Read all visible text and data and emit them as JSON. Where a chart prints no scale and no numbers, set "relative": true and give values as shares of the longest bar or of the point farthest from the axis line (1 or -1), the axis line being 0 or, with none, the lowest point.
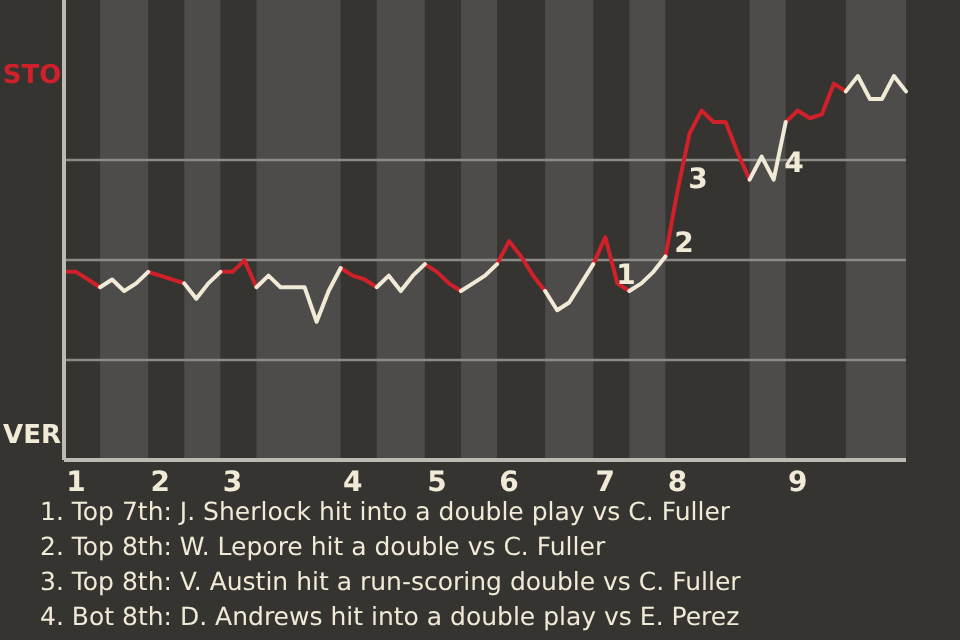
{
  "chart_data": {
    "type": "line",
    "relative": true,
    "categories": [
      null,
      "1",
      null,
      null,
      null,
      null,
      null,
      null,
      "2",
      null,
      null,
      null,
      null,
      null,
      "3",
      null,
      null,
      null,
      null,
      null,
      null,
      null,
      null,
      null,
      "4",
      null,
      null,
      null,
      null,
      null,
      null,
      "5",
      null,
      null,
      null,
      null,
      null,
      "6",
      null,
      null,
      null,
      null,
      null,
      null,
      null,
      "7",
      null,
      null,
      null,
      null,
      null,
      "8",
      null,
      null,
      null,
      null,
      null,
      null,
      null,
      null,
      null,
      "9",
      null,
      null,
      null,
      null,
      null,
      null,
      null,
      null,
      null
    ],
    "series": [
      {
        "color": "#d0202a",
        "values": [
          0.49,
          0.49,
          0.47,
          0.45,
          null,
          null,
          null,
          0.49,
          0.48,
          0.47,
          0.46,
          null,
          null,
          0.49,
          0.49,
          0.52,
          0.45,
          null,
          null,
          null,
          null,
          null,
          null,
          0.5,
          0.48,
          0.47,
          0.45,
          null,
          null,
          null,
          0.51,
          0.49,
          0.46,
          0.44,
          null,
          null,
          0.51,
          0.57,
          0.53,
          0.48,
          0.44,
          null,
          null,
          null,
          0.51,
          0.58,
          0.46,
          0.44,
          null,
          null,
          0.53,
          0.7,
          0.85,
          0.91,
          0.88,
          0.88,
          0.8,
          0.73,
          null,
          null,
          0.88,
          0.91,
          0.89,
          0.9,
          0.98,
          0.96,
          null,
          null,
          null,
          null,
          null
        ]
      },
      {
        "color": "#f0ead6",
        "values": [
          null,
          null,
          null,
          0.45,
          0.47,
          0.44,
          0.46,
          0.49,
          null,
          null,
          0.46,
          0.42,
          0.46,
          0.49,
          null,
          null,
          0.45,
          0.48,
          0.45,
          0.45,
          0.45,
          0.36,
          0.44,
          0.5,
          null,
          null,
          0.45,
          0.48,
          0.44,
          0.48,
          0.51,
          null,
          null,
          0.44,
          0.46,
          0.48,
          0.51,
          null,
          null,
          null,
          0.44,
          0.39,
          0.41,
          0.46,
          0.51,
          null,
          null,
          0.44,
          0.46,
          0.49,
          0.53,
          null,
          null,
          null,
          null,
          null,
          null,
          0.73,
          0.79,
          0.73,
          0.88,
          null,
          null,
          null,
          null,
          0.96,
          1,
          0.94,
          0.94,
          1,
          0.96
        ]
      }
    ],
    "grid": "y",
    "annotations": [
      "STO",
      "VER",
      "1",
      "2",
      "3",
      "4",
      "1. Top 7th: J. Sherlock hit into a double play vs C. Fuller",
      "2. Top 8th: W. Lepore hit a double vs C. Fuller",
      "3. Top 8th: V. Austin hit a run-scoring double vs C. Fuller",
      "4. Bot 8th: D. Andrews hit into a double play vs E. Perez"
    ]
  }
}
